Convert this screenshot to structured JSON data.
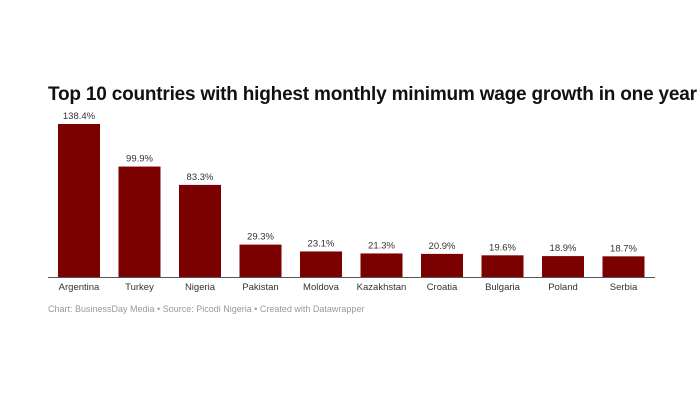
{
  "chart_data": {
    "type": "bar",
    "title": "Top 10 countries with highest monthly minimum wage growth in one year",
    "categories": [
      "Argentina",
      "Turkey",
      "Nigeria",
      "Pakistan",
      "Moldova",
      "Kazakhstan",
      "Croatia",
      "Bulgaria",
      "Poland",
      "Serbia"
    ],
    "values": [
      138.4,
      99.9,
      83.3,
      29.3,
      23.1,
      21.3,
      20.9,
      19.6,
      18.9,
      18.7
    ],
    "data_labels": [
      "138.4%",
      "99.9%",
      "83.3%",
      "29.3%",
      "23.1%",
      "21.3%",
      "20.9%",
      "19.6%",
      "18.9%",
      "18.7%"
    ],
    "unit": "%",
    "ylim": [
      0,
      138.4
    ],
    "grid": false,
    "bar_color": "#7b0000",
    "footer": "Chart: BusinessDay Media • Source: Picodi Nigeria • Created with Datawrapper"
  }
}
